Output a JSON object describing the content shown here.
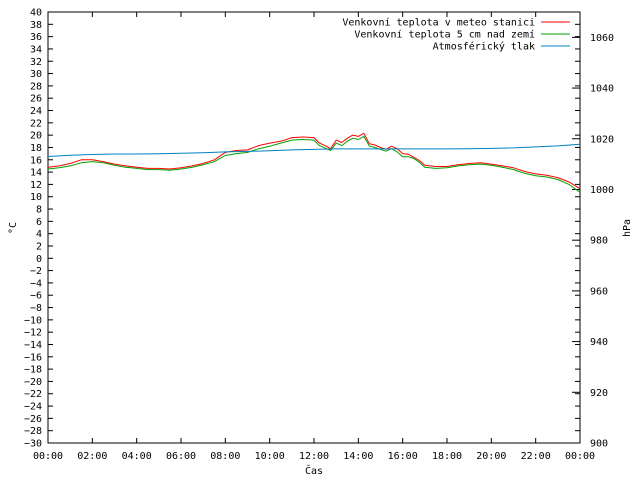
{
  "chart_data": {
    "type": "line",
    "title": "",
    "xlabel": "Čas",
    "ylabel": "°C",
    "y2label": "hPa",
    "xlim": [
      0,
      24
    ],
    "ylim": [
      -30,
      40
    ],
    "y2lim": [
      900,
      1070
    ],
    "xticks": [
      "00:00",
      "02:00",
      "04:00",
      "06:00",
      "08:00",
      "10:00",
      "12:00",
      "14:00",
      "16:00",
      "18:00",
      "20:00",
      "22:00",
      "00:00"
    ],
    "yticks": [
      -30,
      -28,
      -26,
      -24,
      -22,
      -20,
      -18,
      -16,
      -14,
      -12,
      -10,
      -8,
      -6,
      -4,
      -2,
      0,
      2,
      4,
      6,
      8,
      10,
      12,
      14,
      16,
      18,
      20,
      22,
      24,
      26,
      28,
      30,
      32,
      34,
      36,
      38,
      40
    ],
    "y2ticks": [
      900,
      920,
      940,
      960,
      980,
      1000,
      1020,
      1040,
      1060
    ],
    "grid": false,
    "legend_position": "top-right",
    "series": [
      {
        "name": "Venkovní teplota v meteo stanici",
        "color": "#ff0000",
        "axis": "left",
        "x": [
          0,
          0.5,
          1,
          1.5,
          2,
          2.5,
          3,
          3.5,
          4,
          4.5,
          5,
          5.5,
          6,
          6.5,
          7,
          7.5,
          8,
          8.5,
          9,
          9.5,
          10,
          10.5,
          11,
          11.5,
          12,
          12.25,
          12.5,
          12.75,
          13,
          13.25,
          13.5,
          13.75,
          14,
          14.25,
          14.5,
          14.75,
          15,
          15.25,
          15.5,
          15.75,
          16,
          16.25,
          16.5,
          16.75,
          17,
          17.5,
          18,
          18.5,
          19,
          19.5,
          20,
          20.5,
          21,
          21.5,
          22,
          22.5,
          23,
          23.5,
          24
        ],
        "values": [
          14.8,
          15.0,
          15.4,
          16.0,
          16.0,
          15.7,
          15.3,
          15.0,
          14.8,
          14.6,
          14.6,
          14.5,
          14.7,
          15.0,
          15.4,
          16.0,
          17.2,
          17.5,
          17.6,
          18.3,
          18.7,
          19.0,
          19.6,
          19.7,
          19.6,
          18.7,
          18.3,
          17.8,
          19.2,
          18.8,
          19.5,
          20.0,
          19.8,
          20.3,
          18.6,
          18.4,
          18.0,
          17.7,
          18.2,
          17.8,
          17.0,
          16.9,
          16.4,
          15.9,
          15.1,
          14.9,
          14.9,
          15.2,
          15.4,
          15.5,
          15.3,
          15.0,
          14.7,
          14.1,
          13.7,
          13.5,
          13.1,
          12.4,
          11.3
        ]
      },
      {
        "name": "Venkovní teplota 5 cm nad zemí",
        "color": "#00a000",
        "axis": "left",
        "x": [
          0,
          0.5,
          1,
          1.5,
          2,
          2.5,
          3,
          3.5,
          4,
          4.5,
          5,
          5.5,
          6,
          6.5,
          7,
          7.5,
          8,
          8.5,
          9,
          9.5,
          10,
          10.5,
          11,
          11.5,
          12,
          12.25,
          12.5,
          12.75,
          13,
          13.25,
          13.5,
          13.75,
          14,
          14.25,
          14.5,
          14.75,
          15,
          15.25,
          15.5,
          15.75,
          16,
          16.25,
          16.5,
          16.75,
          17,
          17.5,
          18,
          18.5,
          19,
          19.5,
          20,
          20.5,
          21,
          21.5,
          22,
          22.5,
          23,
          23.5,
          24
        ],
        "values": [
          14.5,
          14.7,
          15.0,
          15.5,
          15.7,
          15.5,
          15.1,
          14.8,
          14.6,
          14.4,
          14.4,
          14.3,
          14.5,
          14.8,
          15.2,
          15.7,
          16.7,
          17.0,
          17.2,
          17.8,
          18.2,
          18.7,
          19.2,
          19.3,
          19.2,
          18.3,
          17.9,
          17.5,
          18.7,
          18.3,
          19.0,
          19.5,
          19.3,
          19.8,
          18.2,
          18.0,
          17.7,
          17.4,
          17.8,
          17.3,
          16.5,
          16.5,
          16.2,
          15.6,
          14.8,
          14.6,
          14.7,
          15.0,
          15.2,
          15.3,
          15.1,
          14.8,
          14.4,
          13.8,
          13.4,
          13.2,
          12.8,
          12.0,
          10.7
        ]
      },
      {
        "name": "Atmosférický tlak",
        "color": "#0080c0",
        "axis": "right",
        "x": [
          0,
          1,
          2,
          3,
          4,
          5,
          6,
          7,
          8,
          9,
          10,
          11,
          12,
          13,
          14,
          15,
          16,
          17,
          18,
          19,
          20,
          21,
          22,
          23,
          24
        ],
        "values": [
          1013.0,
          1013.5,
          1013.8,
          1014.0,
          1014.0,
          1014.1,
          1014.3,
          1014.5,
          1014.8,
          1015.0,
          1015.3,
          1015.6,
          1015.8,
          1016.0,
          1016.0,
          1016.0,
          1016.0,
          1016.0,
          1016.0,
          1016.1,
          1016.2,
          1016.4,
          1016.8,
          1017.2,
          1017.8
        ]
      }
    ]
  }
}
